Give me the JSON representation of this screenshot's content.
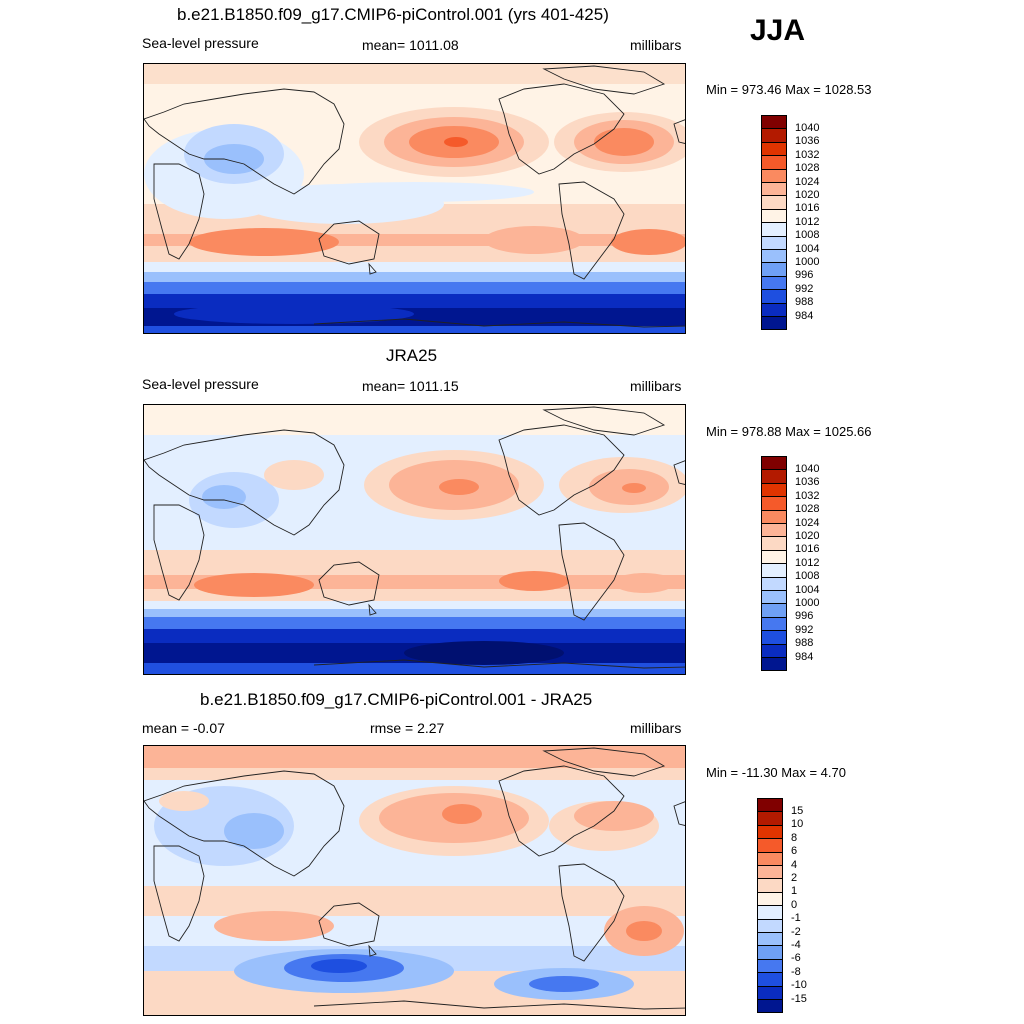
{
  "season": "JJA",
  "panels": [
    {
      "id": "model",
      "title": "b.e21.B1850.f09_g17.CMIP6-piControl.001 (yrs 401-425)",
      "left_text": "Sea-level pressure",
      "center_text": "mean= 1011.08",
      "right_text": "millibars",
      "minmax": "Min = 973.46 Max = 1028.53",
      "colorbar": {
        "labels": [
          "1040",
          "1036",
          "1032",
          "1028",
          "1024",
          "1020",
          "1016",
          "1012",
          "1008",
          "1004",
          "1000",
          "996",
          "992",
          "988",
          "984"
        ],
        "colors": [
          "#800000",
          "#b31a00",
          "#e03400",
          "#f55a2a",
          "#fa8a60",
          "#fcb497",
          "#fcd9c4",
          "#fff3e6",
          "#e3efff",
          "#c2d9ff",
          "#9ac0fc",
          "#6fa0f5",
          "#4678f0",
          "#1e4fe0",
          "#0a2cc0",
          "#001690"
        ]
      }
    },
    {
      "id": "obs",
      "title": "JRA25",
      "left_text": "Sea-level pressure",
      "center_text": "mean= 1011.15",
      "right_text": "millibars",
      "minmax": "Min = 978.88 Max = 1025.66",
      "colorbar": {
        "labels": [
          "1040",
          "1036",
          "1032",
          "1028",
          "1024",
          "1020",
          "1016",
          "1012",
          "1008",
          "1004",
          "1000",
          "996",
          "992",
          "988",
          "984"
        ],
        "colors": [
          "#800000",
          "#b31a00",
          "#e03400",
          "#f55a2a",
          "#fa8a60",
          "#fcb497",
          "#fcd9c4",
          "#fff3e6",
          "#e3efff",
          "#c2d9ff",
          "#9ac0fc",
          "#6fa0f5",
          "#4678f0",
          "#1e4fe0",
          "#0a2cc0",
          "#001690"
        ]
      }
    },
    {
      "id": "diff",
      "title": "b.e21.B1850.f09_g17.CMIP6-piControl.001 - JRA25",
      "left_text": "mean =  -0.07",
      "center_text": "rmse =   2.27",
      "right_text": "millibars",
      "minmax": "Min = -11.30 Max =   4.70",
      "colorbar": {
        "labels": [
          "15",
          "10",
          "8",
          "6",
          "4",
          "2",
          "1",
          "0",
          "-1",
          "-2",
          "-4",
          "-6",
          "-8",
          "-10",
          "-15"
        ],
        "colors": [
          "#800000",
          "#b31a00",
          "#e03400",
          "#f55a2a",
          "#fa8a60",
          "#fcb497",
          "#fcd9c4",
          "#fff3e6",
          "#e3efff",
          "#c2d9ff",
          "#9ac0fc",
          "#6fa0f5",
          "#4678f0",
          "#1e4fe0",
          "#0a2cc0",
          "#001690"
        ]
      }
    }
  ]
}
